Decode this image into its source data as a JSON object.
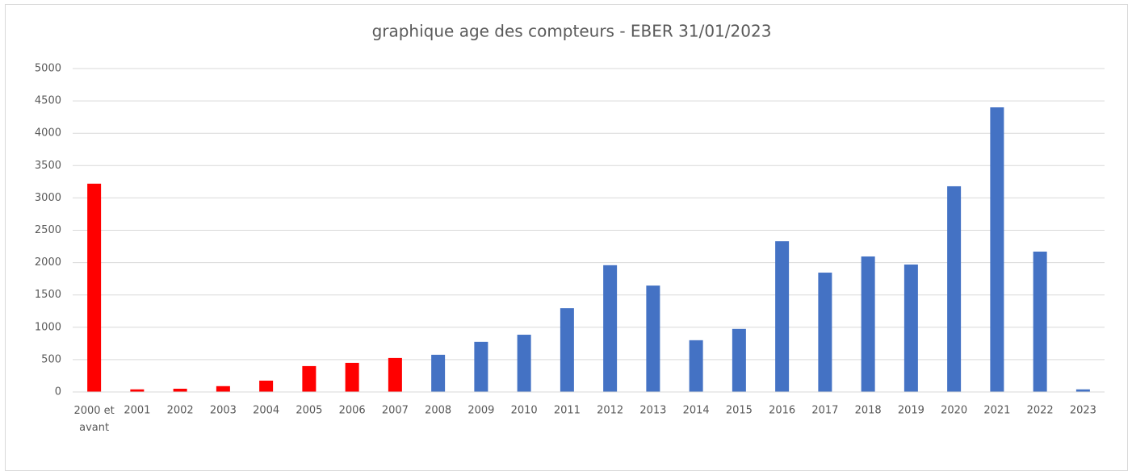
{
  "chart_data": {
    "type": "bar",
    "title": "graphique age des compteurs - EBER 31/01/2023",
    "categories": [
      "2000 et avant",
      "2001",
      "2002",
      "2003",
      "2004",
      "2005",
      "2006",
      "2007",
      "2008",
      "2009",
      "2010",
      "2011",
      "2012",
      "2013",
      "2014",
      "2015",
      "2016",
      "2017",
      "2018",
      "2019",
      "2020",
      "2021",
      "2022",
      "2023"
    ],
    "values": [
      3220,
      40,
      50,
      90,
      175,
      400,
      450,
      525,
      575,
      775,
      885,
      1295,
      1960,
      1645,
      800,
      975,
      2330,
      1845,
      2095,
      1970,
      3180,
      4400,
      2170,
      40
    ],
    "colors": [
      "#ff0000",
      "#ff0000",
      "#ff0000",
      "#ff0000",
      "#ff0000",
      "#ff0000",
      "#ff0000",
      "#ff0000",
      "#4472c4",
      "#4472c4",
      "#4472c4",
      "#4472c4",
      "#4472c4",
      "#4472c4",
      "#4472c4",
      "#4472c4",
      "#4472c4",
      "#4472c4",
      "#4472c4",
      "#4472c4",
      "#4472c4",
      "#4472c4",
      "#4472c4",
      "#4472c4"
    ],
    "ylim": [
      0,
      5000
    ],
    "yticks": [
      0,
      500,
      1000,
      1500,
      2000,
      2500,
      3000,
      3500,
      4000,
      4500,
      5000
    ],
    "grid": true
  }
}
